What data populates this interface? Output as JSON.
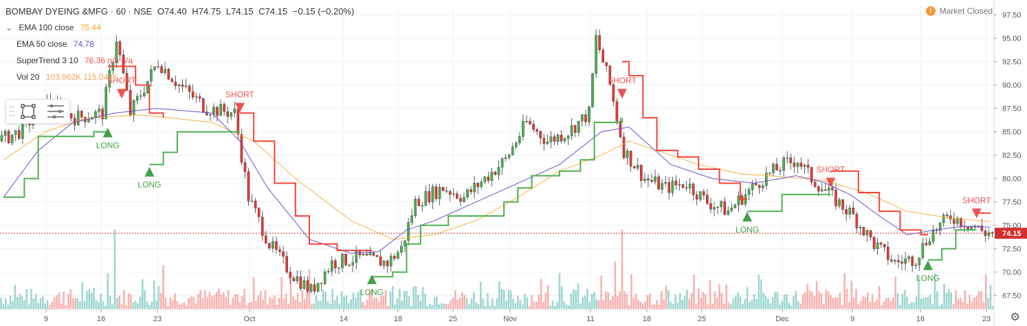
{
  "header": {
    "symbol": "BOMBAY DYEING &MFG · 60 · NSE",
    "open": "O74.40",
    "high": "H74.75",
    "low": "L74.15",
    "close": "C74.15",
    "change": "−0.15 (−0.20%)"
  },
  "market_status": {
    "label": "Market Closed",
    "badge": "!"
  },
  "legend": [
    {
      "name": "EMA 100 close",
      "value": "75.44",
      "color": "#f5a623"
    },
    {
      "name": "EMA 50 close",
      "value": "74.78",
      "color": "#6a4fc7"
    },
    {
      "name": "SuperTrend 3 10",
      "value": "76.36 n/a n/a",
      "color": "#ef5350"
    },
    {
      "name": "Vol 20",
      "value": "103.962K 115.042K",
      "color": "#f4a460"
    }
  ],
  "last_price_label": "74.15",
  "colors": {
    "up": "#26a69a",
    "down": "#ef5350",
    "supertrend_up": "#4caf50",
    "supertrend_down": "#f44336",
    "ema100": "#f5b13d",
    "ema50": "#6a4fc7",
    "last_price": "#d32f2f"
  },
  "chart_data": {
    "type": "candlestick",
    "ylim": [
      66,
      98.5
    ],
    "y_ticks": [
      "97.50",
      "95.00",
      "92.50",
      "90.00",
      "87.50",
      "85.00",
      "82.50",
      "80.00",
      "77.50",
      "75.00",
      "72.50",
      "70.00",
      "67.50"
    ],
    "x_ticks": [
      "9",
      "16",
      "23",
      "Oct",
      "14",
      "18",
      "25",
      "Nov",
      "11",
      "18",
      "25",
      "Dec",
      "9",
      "16",
      "23"
    ],
    "price_path": [
      [
        0,
        84
      ],
      [
        3,
        85
      ],
      [
        7,
        88
      ],
      [
        11,
        86.5
      ],
      [
        15,
        87
      ],
      [
        17,
        95
      ],
      [
        19,
        87
      ],
      [
        23,
        92.5
      ],
      [
        26,
        90
      ],
      [
        30,
        87.5
      ],
      [
        34,
        87
      ],
      [
        36,
        78
      ],
      [
        39,
        73
      ],
      [
        42,
        70
      ],
      [
        45,
        68
      ],
      [
        48,
        71
      ],
      [
        52,
        71.5
      ],
      [
        56,
        71
      ],
      [
        58,
        72.5
      ],
      [
        60,
        77.5
      ],
      [
        64,
        79
      ],
      [
        67,
        78
      ],
      [
        70,
        80
      ],
      [
        73,
        82
      ],
      [
        76,
        86
      ],
      [
        79,
        84
      ],
      [
        82,
        85
      ],
      [
        85,
        87
      ],
      [
        86,
        95
      ],
      [
        88,
        90
      ],
      [
        90,
        83
      ],
      [
        93,
        80
      ],
      [
        96,
        79
      ],
      [
        99,
        79.5
      ],
      [
        102,
        77.5
      ],
      [
        105,
        76.5
      ],
      [
        107,
        78
      ],
      [
        110,
        80
      ],
      [
        113,
        81.5
      ],
      [
        115,
        82
      ],
      [
        117,
        80
      ],
      [
        120,
        78
      ],
      [
        123,
        76
      ],
      [
        126,
        73
      ],
      [
        129,
        71
      ],
      [
        132,
        71.5
      ],
      [
        134,
        74
      ],
      [
        137,
        76
      ],
      [
        140,
        75
      ],
      [
        142,
        74.2
      ]
    ],
    "ema100": [
      [
        0,
        82
      ],
      [
        6,
        85
      ],
      [
        12,
        86.5
      ],
      [
        20,
        86.8
      ],
      [
        30,
        86
      ],
      [
        36,
        84
      ],
      [
        42,
        80
      ],
      [
        50,
        75.5
      ],
      [
        56,
        73.5
      ],
      [
        62,
        74
      ],
      [
        68,
        75.5
      ],
      [
        74,
        78
      ],
      [
        80,
        80.8
      ],
      [
        86,
        82.5
      ],
      [
        90,
        84
      ],
      [
        94,
        83
      ],
      [
        100,
        81.5
      ],
      [
        106,
        80.5
      ],
      [
        112,
        80.2
      ],
      [
        118,
        79.8
      ],
      [
        124,
        78.5
      ],
      [
        130,
        76.5
      ],
      [
        136,
        75.8
      ],
      [
        142,
        75.4
      ]
    ],
    "ema50": [
      [
        0,
        78
      ],
      [
        5,
        83
      ],
      [
        10,
        86
      ],
      [
        16,
        87
      ],
      [
        22,
        87.5
      ],
      [
        30,
        87
      ],
      [
        34,
        84
      ],
      [
        38,
        79
      ],
      [
        44,
        73.5
      ],
      [
        50,
        72
      ],
      [
        54,
        72.2
      ],
      [
        58,
        74.5
      ],
      [
        62,
        75.5
      ],
      [
        68,
        77.5
      ],
      [
        74,
        79.5
      ],
      [
        80,
        81.5
      ],
      [
        86,
        85
      ],
      [
        90,
        85.5
      ],
      [
        96,
        81.5
      ],
      [
        102,
        80
      ],
      [
        108,
        79.5
      ],
      [
        114,
        80.3
      ],
      [
        118,
        79.6
      ],
      [
        122,
        78.2
      ],
      [
        126,
        76
      ],
      [
        130,
        74
      ],
      [
        134,
        74.5
      ],
      [
        138,
        74.9
      ],
      [
        142,
        74.8
      ]
    ],
    "supertrend": [
      {
        "dir": "up",
        "pts": [
          [
            0,
            78
          ],
          [
            3,
            80
          ],
          [
            5,
            84.5
          ],
          [
            9,
            84.5
          ],
          [
            13,
            85
          ],
          [
            15,
            85
          ]
        ]
      },
      {
        "dir": "down",
        "pts": [
          [
            15,
            92
          ],
          [
            17,
            92
          ],
          [
            19,
            90
          ],
          [
            21,
            87
          ],
          [
            23,
            86.5
          ]
        ]
      },
      {
        "dir": "up",
        "pts": [
          [
            21,
            81.5
          ],
          [
            23,
            82.8
          ],
          [
            25,
            85
          ],
          [
            32,
            85
          ],
          [
            34,
            85
          ]
        ]
      },
      {
        "dir": "down",
        "pts": [
          [
            34,
            87
          ],
          [
            36,
            84
          ],
          [
            39,
            79.5
          ],
          [
            42,
            76
          ],
          [
            44,
            73
          ],
          [
            48,
            72.3
          ],
          [
            53,
            72.3
          ]
        ]
      },
      {
        "dir": "up",
        "pts": [
          [
            53,
            69.5
          ],
          [
            56,
            70
          ],
          [
            58,
            73
          ],
          [
            60,
            75
          ],
          [
            64,
            76
          ],
          [
            66,
            76
          ],
          [
            70,
            76
          ],
          [
            72,
            77.5
          ],
          [
            74,
            79
          ],
          [
            76,
            80.3
          ],
          [
            80,
            80.8
          ],
          [
            83,
            82
          ],
          [
            85,
            86
          ],
          [
            89,
            86.5
          ]
        ]
      },
      {
        "dir": "down",
        "pts": [
          [
            89,
            92.5
          ],
          [
            90,
            91
          ],
          [
            92,
            86.5
          ],
          [
            94,
            83
          ],
          [
            97,
            82.3
          ],
          [
            100,
            81
          ],
          [
            103,
            79.5
          ],
          [
            106,
            77.8
          ],
          [
            107,
            77.8
          ]
        ]
      },
      {
        "dir": "up",
        "pts": [
          [
            107,
            76.5
          ],
          [
            110,
            76.5
          ],
          [
            112,
            78.3
          ],
          [
            118,
            78.3
          ],
          [
            119,
            78.3
          ]
        ]
      },
      {
        "dir": "down",
        "pts": [
          [
            119,
            80.8
          ],
          [
            121,
            80.8
          ],
          [
            123,
            78.5
          ],
          [
            126,
            76.5
          ],
          [
            129,
            74.5
          ],
          [
            132,
            74
          ],
          [
            133,
            74
          ]
        ]
      },
      {
        "dir": "up",
        "pts": [
          [
            133,
            71.3
          ],
          [
            135,
            72.5
          ],
          [
            137,
            74.5
          ],
          [
            140,
            74.5
          ]
        ]
      },
      {
        "dir": "down",
        "pts": [
          [
            140,
            76.3
          ],
          [
            142,
            76.3
          ]
        ]
      }
    ],
    "signals": [
      {
        "label": "LONG",
        "type": "long",
        "i": 15,
        "price": 85
      },
      {
        "label": "SHORT",
        "type": "short",
        "i": 17,
        "price": 89
      },
      {
        "label": "LONG",
        "type": "long",
        "i": 21,
        "price": 80.8
      },
      {
        "label": "SHORT",
        "type": "short",
        "i": 34,
        "price": 87.5
      },
      {
        "label": "LONG",
        "type": "long",
        "i": 53,
        "price": 69.3
      },
      {
        "label": "SHORT",
        "type": "short",
        "i": 89,
        "price": 89
      },
      {
        "label": "LONG",
        "type": "long",
        "i": 107,
        "price": 76
      },
      {
        "label": "SHORT",
        "type": "short",
        "i": 119,
        "price": 79.5
      },
      {
        "label": "LONG",
        "type": "long",
        "i": 133,
        "price": 70.8
      },
      {
        "label": "SHORT",
        "type": "short",
        "i": 140,
        "price": 76.2
      }
    ],
    "volume_spikes": [
      [
        16,
        1.0
      ],
      [
        15,
        0.45
      ],
      [
        23,
        0.55
      ],
      [
        36,
        0.4
      ],
      [
        44,
        0.5
      ],
      [
        59,
        0.28
      ],
      [
        80,
        0.45
      ],
      [
        89,
        1.0
      ],
      [
        88,
        0.6
      ],
      [
        117,
        0.35
      ],
      [
        121,
        0.45
      ],
      [
        134,
        0.45
      ]
    ],
    "last_price": 74.15
  }
}
